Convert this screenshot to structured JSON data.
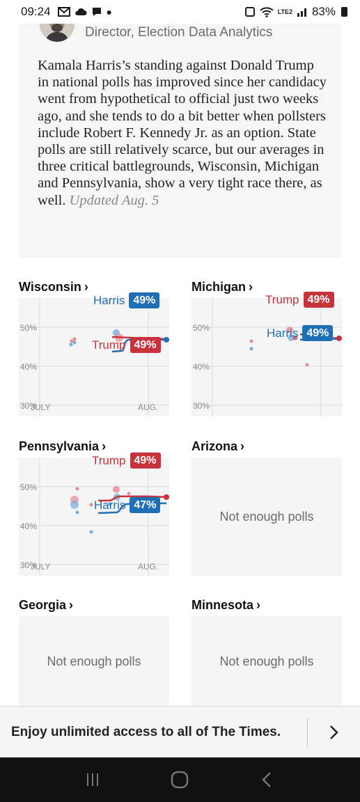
{
  "status": {
    "time": "09:24",
    "battery": "83%",
    "net": "LTE2"
  },
  "author": {
    "title": "Director, Election Data Analytics"
  },
  "summary": {
    "text": "Kamala Harris’s standing against Donald Trump in national polls has improved since her candidacy went from hypothetical to official just two weeks ago, and she tends to do a bit better when pollsters include Robert F. Kennedy Jr. as an option. State polls are still relatively scarce, but our averages in three critical battlegrounds, Wisconsin, Michigan and Pennsylvania, show a very tight race there, as well.",
    "updated": "Updated Aug. 5"
  },
  "states": [
    {
      "name": "Wisconsin",
      "chevron": "›",
      "harris_label": "Harris",
      "harris_pct": "49%",
      "trump_label": "Trump",
      "trump_pct": "49%",
      "harris_value": 49,
      "trump_value": 49
    },
    {
      "name": "Michigan",
      "chevron": "›",
      "harris_label": "Harris",
      "harris_pct": "49%",
      "trump_label": "Trump",
      "trump_pct": "49%",
      "harris_value": 49,
      "trump_value": 49
    },
    {
      "name": "Pennsylvania",
      "chevron": "›",
      "harris_label": "Harris",
      "harris_pct": "47%",
      "trump_label": "Trump",
      "trump_pct": "49%",
      "harris_value": 47,
      "trump_value": 49
    },
    {
      "name": "Arizona",
      "chevron": "›",
      "empty": "Not enough polls"
    },
    {
      "name": "Georgia",
      "chevron": "›",
      "empty": "Not enough polls"
    },
    {
      "name": "Minnesota",
      "chevron": "›",
      "empty": "Not enough polls"
    }
  ],
  "axis": {
    "y_ticks": [
      "50%",
      "40%",
      "30%"
    ],
    "x_ticks": [
      "JULY",
      "AUG."
    ],
    "ylim": [
      28,
      53
    ]
  },
  "promo": {
    "text": "Enjoy unlimited access to all of The Times."
  },
  "colors": {
    "dem": "#1e6fb5",
    "rep": "#c8323b"
  }
}
